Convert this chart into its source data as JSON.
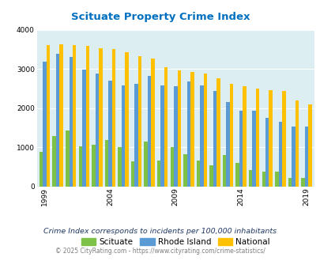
{
  "title": "Scituate Property Crime Index",
  "years": [
    1999,
    2000,
    2001,
    2002,
    2003,
    2004,
    2005,
    2006,
    2007,
    2008,
    2009,
    2010,
    2011,
    2012,
    2013,
    2014,
    2015,
    2016,
    2017,
    2018,
    2019
  ],
  "scituate": [
    880,
    1300,
    1440,
    1030,
    1060,
    1200,
    1010,
    650,
    1150,
    660,
    1000,
    820,
    670,
    540,
    800,
    610,
    430,
    380,
    380,
    220,
    230
  ],
  "rhode_island": [
    3190,
    3390,
    3310,
    2990,
    2880,
    2710,
    2590,
    2630,
    2830,
    2580,
    2560,
    2680,
    2590,
    2450,
    2160,
    1940,
    1940,
    1750,
    1660,
    1540,
    1540
  ],
  "national": [
    3610,
    3640,
    3610,
    3600,
    3530,
    3520,
    3440,
    3340,
    3270,
    3050,
    2960,
    2920,
    2880,
    2760,
    2620,
    2570,
    2500,
    2470,
    2450,
    2200,
    2100
  ],
  "scituate_color": "#7dc247",
  "ri_color": "#5b9bd5",
  "national_color": "#ffc000",
  "bg_color": "#ddeef3",
  "title_color": "#0070c0",
  "subtitle_color": "#1f3864",
  "footer_color": "#7f7f7f",
  "subtitle": "Crime Index corresponds to incidents per 100,000 inhabitants",
  "footer": "© 2025 CityRating.com - https://www.cityrating.com/crime-statistics/",
  "ylim": [
    0,
    4000
  ],
  "yticks": [
    0,
    1000,
    2000,
    3000,
    4000
  ],
  "bar_width": 0.27,
  "xtick_years": [
    1999,
    2004,
    2009,
    2014,
    2019
  ]
}
